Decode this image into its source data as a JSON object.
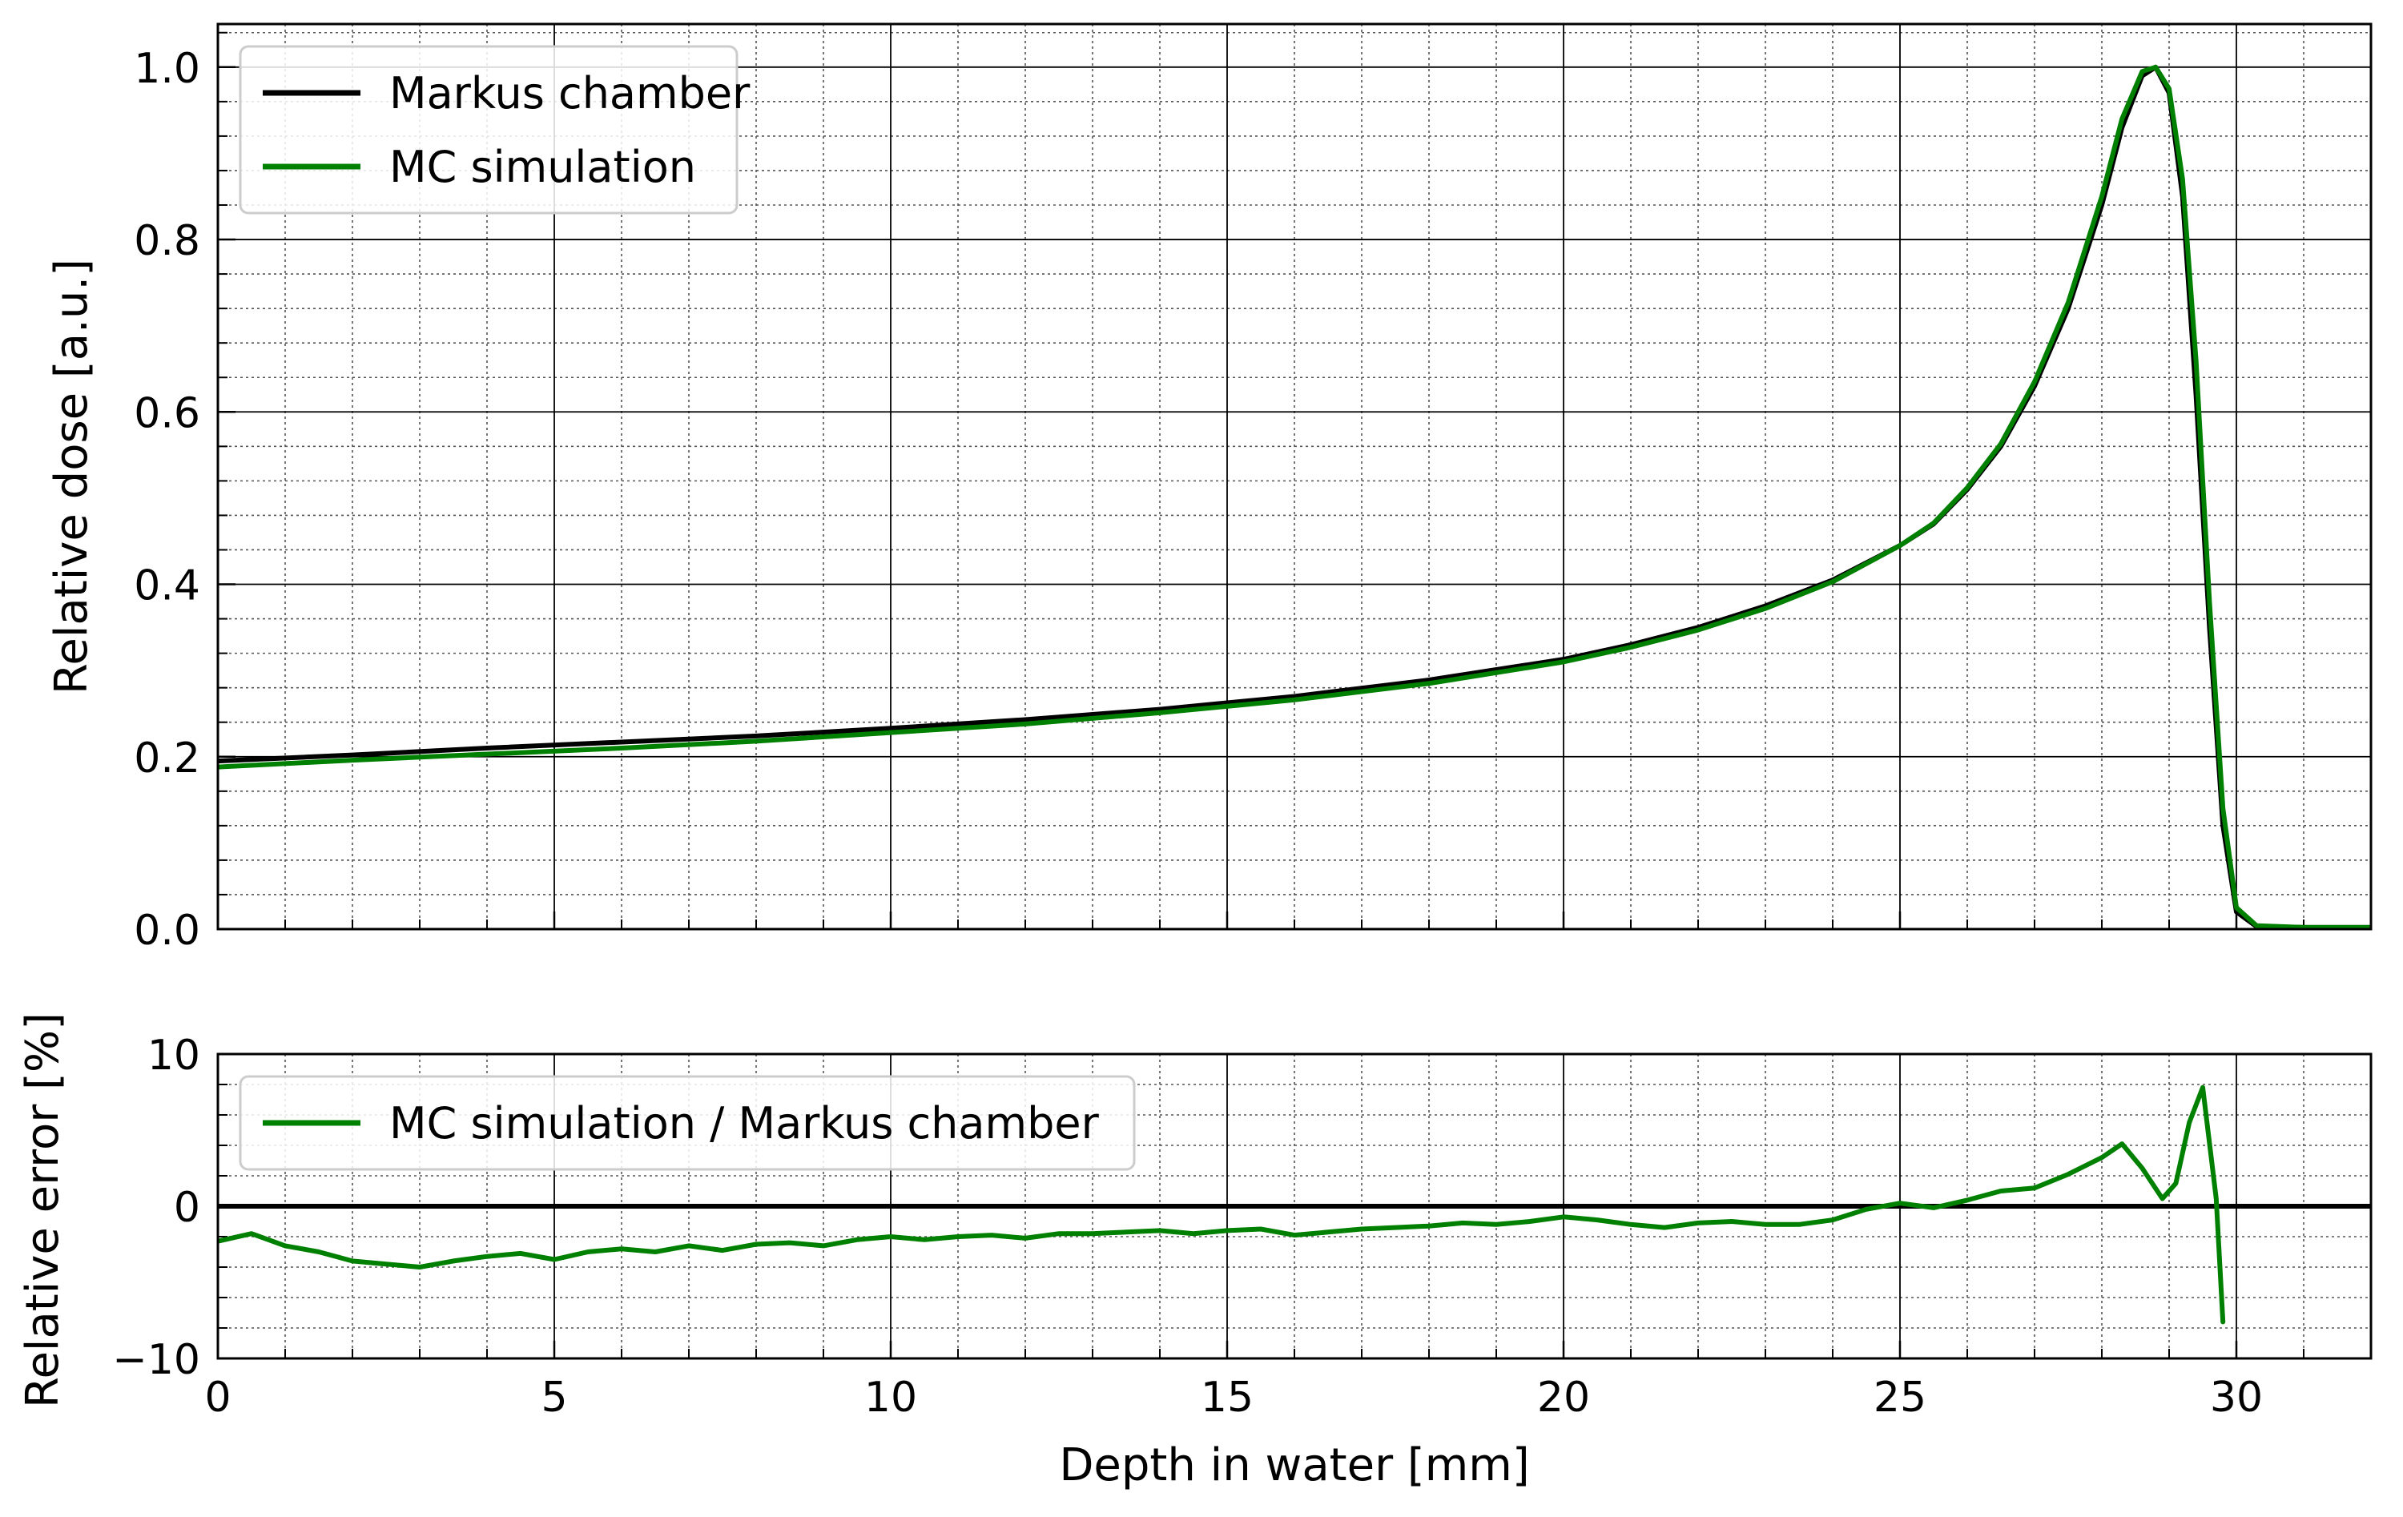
{
  "chart_data": [
    {
      "type": "line",
      "panel": "top",
      "ylabel": "Relative dose [a.u.]",
      "xlim": [
        0,
        32
      ],
      "ylim": [
        0,
        1.05
      ],
      "xticks": [
        0,
        5,
        10,
        15,
        20,
        25,
        30
      ],
      "yticks": [
        0.0,
        0.2,
        0.4,
        0.6,
        0.8,
        1.0
      ],
      "ytick_labels": [
        "0.0",
        "0.2",
        "0.4",
        "0.6",
        "0.8",
        "1.0"
      ],
      "grid": true,
      "legend_position": "top-left",
      "series": [
        {
          "name": "Markus chamber",
          "color": "#000000",
          "x": [
            0,
            2,
            4,
            6,
            8,
            10,
            12,
            14,
            16,
            18,
            20,
            21,
            22,
            23,
            24,
            25,
            25.5,
            26,
            26.5,
            27,
            27.5,
            28,
            28.3,
            28.6,
            28.8,
            29.0,
            29.2,
            29.4,
            29.6,
            29.8,
            30.0,
            30.3,
            31,
            32
          ],
          "y": [
            0.195,
            0.202,
            0.21,
            0.217,
            0.224,
            0.233,
            0.243,
            0.255,
            0.27,
            0.289,
            0.313,
            0.33,
            0.35,
            0.375,
            0.405,
            0.445,
            0.47,
            0.51,
            0.56,
            0.63,
            0.72,
            0.84,
            0.93,
            0.99,
            1.0,
            0.97,
            0.85,
            0.62,
            0.35,
            0.12,
            0.02,
            0.003,
            0.002,
            0.002
          ]
        },
        {
          "name": "MC simulation",
          "color": "#008000",
          "x": [
            0,
            2,
            4,
            6,
            8,
            10,
            12,
            14,
            16,
            18,
            20,
            21,
            22,
            23,
            24,
            25,
            25.5,
            26,
            26.5,
            27,
            27.5,
            28,
            28.3,
            28.6,
            28.8,
            29.0,
            29.2,
            29.4,
            29.6,
            29.8,
            30.0,
            30.3,
            31,
            32
          ],
          "y": [
            0.188,
            0.196,
            0.203,
            0.21,
            0.218,
            0.228,
            0.238,
            0.251,
            0.266,
            0.285,
            0.31,
            0.327,
            0.347,
            0.372,
            0.403,
            0.445,
            0.471,
            0.512,
            0.563,
            0.635,
            0.727,
            0.85,
            0.94,
            0.995,
            1.0,
            0.975,
            0.87,
            0.66,
            0.38,
            0.14,
            0.025,
            0.004,
            0.002,
            0.002
          ]
        }
      ]
    },
    {
      "type": "line",
      "panel": "bottom",
      "xlabel": "Depth in water [mm]",
      "ylabel": "Relative error [%]",
      "xlim": [
        0,
        32
      ],
      "ylim": [
        -10,
        10
      ],
      "xticks": [
        0,
        5,
        10,
        15,
        20,
        25,
        30
      ],
      "xtick_labels": [
        "0",
        "5",
        "10",
        "15",
        "20",
        "25",
        "30"
      ],
      "yticks": [
        -10,
        0,
        10
      ],
      "ytick_labels": [
        "−10",
        "0",
        "10"
      ],
      "grid": true,
      "reference_line_y": 0,
      "legend_position": "top-left",
      "series": [
        {
          "name": "MC simulation / Markus chamber",
          "color": "#008000",
          "x": [
            0,
            0.5,
            1,
            1.5,
            2,
            2.5,
            3,
            3.5,
            4,
            4.5,
            5,
            5.5,
            6,
            6.5,
            7,
            7.5,
            8,
            8.5,
            9,
            9.5,
            10,
            10.5,
            11,
            11.5,
            12,
            12.5,
            13,
            13.5,
            14,
            14.5,
            15,
            15.5,
            16,
            16.5,
            17,
            17.5,
            18,
            18.5,
            19,
            19.5,
            20,
            20.5,
            21,
            21.5,
            22,
            22.5,
            23,
            23.5,
            24,
            24.5,
            25,
            25.5,
            26,
            26.5,
            27,
            27.5,
            28,
            28.3,
            28.6,
            28.9,
            29.1,
            29.3,
            29.5,
            29.7,
            29.8
          ],
          "y": [
            -2.3,
            -1.8,
            -2.6,
            -3.0,
            -3.6,
            -3.8,
            -4.0,
            -3.6,
            -3.3,
            -3.1,
            -3.5,
            -3.0,
            -2.8,
            -3.0,
            -2.6,
            -2.9,
            -2.5,
            -2.4,
            -2.6,
            -2.2,
            -2.0,
            -2.2,
            -2.0,
            -1.9,
            -2.1,
            -1.8,
            -1.8,
            -1.7,
            -1.6,
            -1.8,
            -1.6,
            -1.5,
            -1.9,
            -1.7,
            -1.5,
            -1.4,
            -1.3,
            -1.1,
            -1.2,
            -1.0,
            -0.7,
            -0.9,
            -1.2,
            -1.4,
            -1.1,
            -1.0,
            -1.2,
            -1.2,
            -0.9,
            -0.2,
            0.2,
            -0.1,
            0.4,
            1.0,
            1.2,
            2.1,
            3.2,
            4.1,
            2.5,
            0.5,
            1.5,
            5.5,
            7.8,
            0.5,
            -7.6
          ]
        }
      ]
    }
  ]
}
